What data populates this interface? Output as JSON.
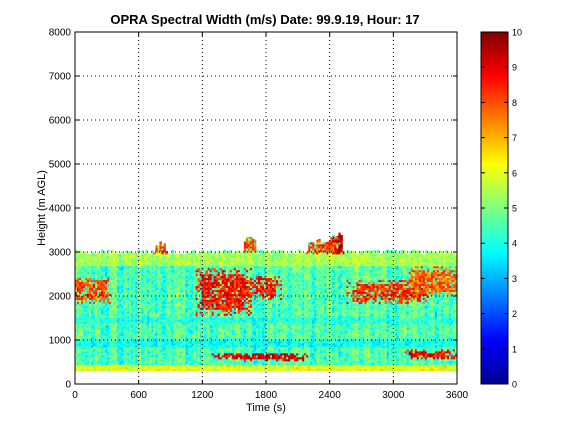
{
  "chart_data": {
    "type": "heatmap",
    "title": "OPRA Spectral Width (m/s)  Date: 99.9.19, Hour: 17",
    "xlabel": "Time (s)",
    "ylabel": "Height (m AGL)",
    "xlim": [
      0,
      3600
    ],
    "ylim": [
      0,
      8000
    ],
    "x_ticks": [
      "0",
      "600",
      "1200",
      "1800",
      "2400",
      "3000",
      "3600"
    ],
    "y_ticks": [
      "0",
      "1000",
      "2000",
      "3000",
      "4000",
      "5000",
      "6000",
      "7000",
      "8000"
    ],
    "grid": true,
    "colormap": "jet",
    "colorbar": {
      "range": [
        0,
        10
      ],
      "ticks": [
        "0",
        "1",
        "2",
        "3",
        "4",
        "5",
        "6",
        "7",
        "8",
        "9",
        "10"
      ]
    },
    "data_extent": {
      "height_min": 300,
      "height_max_typical": 3000,
      "height_max_peak": 3450,
      "peak_time": 2450
    },
    "background_value": 4.5,
    "layers": [
      {
        "height_range": [
          300,
          420
        ],
        "value": 7.0
      },
      {
        "height_range": [
          850,
          1000
        ],
        "value": 3.5
      },
      {
        "height_range": [
          1400,
          1500
        ],
        "value": 3.8
      },
      {
        "height_range": [
          2700,
          3000
        ],
        "value": 6.0
      }
    ],
    "features": [
      {
        "time_range": [
          1400,
          2100
        ],
        "height_range": [
          550,
          700
        ],
        "value": 9.0
      },
      {
        "time_range": [
          3150,
          3550
        ],
        "height_range": [
          600,
          750
        ],
        "value": 8.8
      },
      {
        "time_range": [
          1200,
          1600
        ],
        "height_range": [
          1700,
          2500
        ],
        "value": 8.6
      },
      {
        "time_range": [
          1600,
          1900
        ],
        "height_range": [
          2000,
          2400
        ],
        "value": 8.4
      },
      {
        "time_range": [
          0,
          300
        ],
        "height_range": [
          1900,
          2350
        ],
        "value": 8.0
      },
      {
        "time_range": [
          2650,
          3250
        ],
        "height_range": [
          1900,
          2300
        ],
        "value": 8.3
      },
      {
        "time_range": [
          3200,
          3600
        ],
        "height_range": [
          2100,
          2600
        ],
        "value": 7.8
      },
      {
        "time_range": [
          2400,
          2520
        ],
        "height_range": [
          3000,
          3450
        ],
        "value": 9.2
      },
      {
        "time_range": [
          2200,
          2450
        ],
        "height_range": [
          3000,
          3300
        ],
        "value": 8.0
      },
      {
        "time_range": [
          750,
          850
        ],
        "height_range": [
          3000,
          3250
        ],
        "value": 8.0
      },
      {
        "time_range": [
          1600,
          1700
        ],
        "height_range": [
          3000,
          3350
        ],
        "value": 8.0
      }
    ]
  }
}
